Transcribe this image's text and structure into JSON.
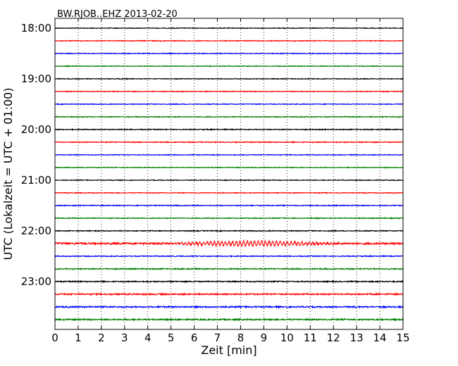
{
  "chart_data": {
    "type": "line",
    "title": "BW.RJOB..EHZ 2013-02-20",
    "xlabel": "Zeit  [min]",
    "ylabel": "UTC (Lokalzeit = UTC + 01:00)",
    "xlim": [
      0,
      15
    ],
    "x_ticks": [
      "0",
      "1",
      "2",
      "3",
      "4",
      "5",
      "6",
      "7",
      "8",
      "9",
      "10",
      "11",
      "12",
      "13",
      "14",
      "15"
    ],
    "y_ticks": [
      "18:00",
      "19:00",
      "20:00",
      "21:00",
      "22:00",
      "23:00"
    ],
    "grid": true,
    "trace_colors": [
      "#000000",
      "#ff0000",
      "#0000ff",
      "#008000"
    ],
    "traces": [
      {
        "start": "18:00",
        "color": "#000000",
        "amplitude": 0.1
      },
      {
        "start": "18:15",
        "color": "#ff0000",
        "amplitude": 0.1
      },
      {
        "start": "18:30",
        "color": "#0000ff",
        "amplitude": 0.1
      },
      {
        "start": "18:45",
        "color": "#008000",
        "amplitude": 0.1
      },
      {
        "start": "19:00",
        "color": "#000000",
        "amplitude": 0.1
      },
      {
        "start": "19:15",
        "color": "#ff0000",
        "amplitude": 0.1
      },
      {
        "start": "19:30",
        "color": "#0000ff",
        "amplitude": 0.1
      },
      {
        "start": "19:45",
        "color": "#008000",
        "amplitude": 0.12
      },
      {
        "start": "20:00",
        "color": "#000000",
        "amplitude": 0.12
      },
      {
        "start": "20:15",
        "color": "#ff0000",
        "amplitude": 0.12
      },
      {
        "start": "20:30",
        "color": "#0000ff",
        "amplitude": 0.1
      },
      {
        "start": "20:45",
        "color": "#008000",
        "amplitude": 0.1
      },
      {
        "start": "21:00",
        "color": "#000000",
        "amplitude": 0.1
      },
      {
        "start": "21:15",
        "color": "#ff0000",
        "amplitude": 0.1
      },
      {
        "start": "21:30",
        "color": "#0000ff",
        "amplitude": 0.12
      },
      {
        "start": "21:45",
        "color": "#008000",
        "amplitude": 0.12
      },
      {
        "start": "22:00",
        "color": "#000000",
        "amplitude": 0.12
      },
      {
        "start": "22:15",
        "color": "#ff0000",
        "amplitude": 0.25
      },
      {
        "start": "22:30",
        "color": "#0000ff",
        "amplitude": 0.12
      },
      {
        "start": "22:45",
        "color": "#008000",
        "amplitude": 0.15
      },
      {
        "start": "23:00",
        "color": "#000000",
        "amplitude": 0.15
      },
      {
        "start": "23:15",
        "color": "#ff0000",
        "amplitude": 0.18
      },
      {
        "start": "23:30",
        "color": "#0000ff",
        "amplitude": 0.18
      },
      {
        "start": "23:45",
        "color": "#008000",
        "amplitude": 0.18
      }
    ]
  }
}
